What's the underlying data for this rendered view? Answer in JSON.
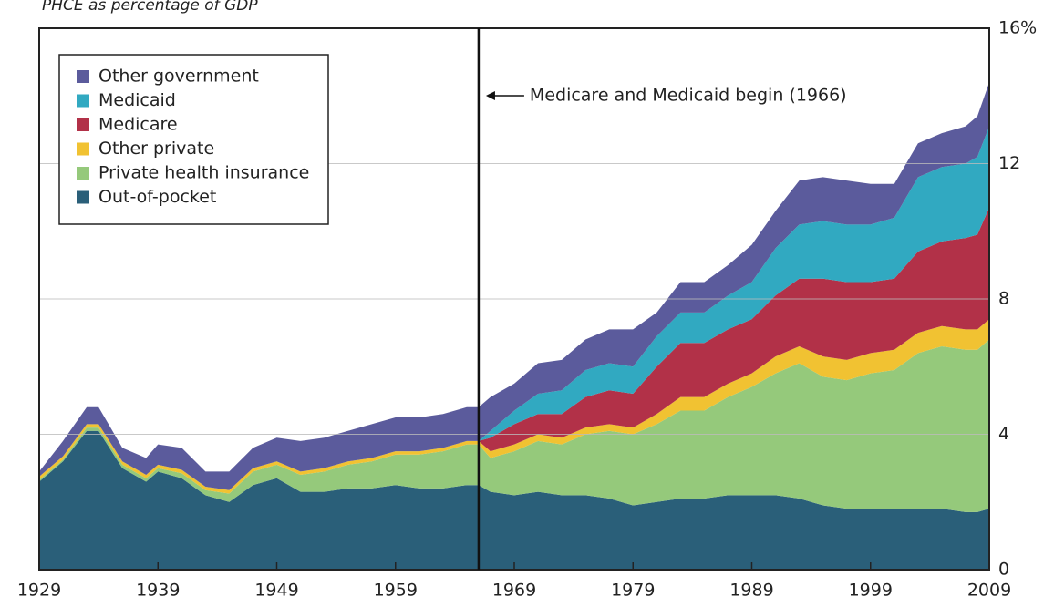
{
  "chart_data": {
    "type": "stacked_area",
    "title": "PHCE as percentage of GDP",
    "annotation": "Medicare and Medicaid begin (1966)",
    "annotation_x": 1966,
    "x": [
      1929,
      1931,
      1933,
      1934,
      1936,
      1938,
      1939,
      1941,
      1943,
      1945,
      1947,
      1949,
      1951,
      1953,
      1955,
      1957,
      1959,
      1961,
      1963,
      1965,
      1966,
      1967,
      1969,
      1971,
      1973,
      1975,
      1977,
      1979,
      1981,
      1983,
      1985,
      1987,
      1989,
      1991,
      1993,
      1995,
      1997,
      1999,
      2001,
      2003,
      2005,
      2007,
      2008,
      2009
    ],
    "series": [
      {
        "name": "Other government",
        "color": "#5b5b9c",
        "values": [
          0.15,
          0.45,
          0.5,
          0.5,
          0.4,
          0.5,
          0.6,
          0.65,
          0.45,
          0.55,
          0.6,
          0.7,
          0.9,
          0.9,
          0.9,
          1.0,
          1.0,
          1.0,
          1.0,
          1.0,
          1.0,
          1.0,
          0.8,
          0.9,
          0.9,
          0.9,
          1.0,
          1.1,
          0.7,
          0.9,
          0.9,
          0.9,
          1.1,
          1.1,
          1.3,
          1.3,
          1.3,
          1.2,
          1.0,
          1.0,
          1.0,
          1.1,
          1.2,
          1.3
        ]
      },
      {
        "name": "Medicaid",
        "color": "#31a9c1",
        "values": [
          0,
          0,
          0,
          0,
          0,
          0,
          0,
          0,
          0,
          0,
          0,
          0,
          0,
          0,
          0,
          0,
          0,
          0,
          0,
          0,
          0,
          0.2,
          0.4,
          0.6,
          0.7,
          0.8,
          0.8,
          0.8,
          0.9,
          0.9,
          0.9,
          1.0,
          1.1,
          1.4,
          1.6,
          1.7,
          1.7,
          1.7,
          1.8,
          2.2,
          2.2,
          2.2,
          2.3,
          2.4
        ]
      },
      {
        "name": "Medicare",
        "color": "#b23148",
        "values": [
          0,
          0,
          0,
          0,
          0,
          0,
          0,
          0,
          0,
          0,
          0,
          0,
          0,
          0,
          0,
          0,
          0,
          0,
          0,
          0,
          0,
          0.4,
          0.6,
          0.6,
          0.7,
          0.9,
          1.0,
          1.0,
          1.4,
          1.6,
          1.6,
          1.6,
          1.6,
          1.8,
          2.0,
          2.3,
          2.3,
          2.1,
          2.1,
          2.4,
          2.5,
          2.7,
          2.8,
          3.3
        ]
      },
      {
        "name": "Other private",
        "color": "#f1c232",
        "values": [
          0.1,
          0.1,
          0.1,
          0.1,
          0.1,
          0.1,
          0.1,
          0.1,
          0.1,
          0.1,
          0.1,
          0.1,
          0.1,
          0.1,
          0.1,
          0.1,
          0.1,
          0.1,
          0.1,
          0.1,
          0.1,
          0.2,
          0.2,
          0.2,
          0.2,
          0.2,
          0.2,
          0.2,
          0.3,
          0.4,
          0.4,
          0.4,
          0.4,
          0.5,
          0.5,
          0.6,
          0.6,
          0.6,
          0.6,
          0.6,
          0.6,
          0.6,
          0.6,
          0.6
        ]
      },
      {
        "name": "Private health insurance",
        "color": "#95c97b",
        "values": [
          0.05,
          0.05,
          0.1,
          0.1,
          0.1,
          0.1,
          0.1,
          0.15,
          0.15,
          0.25,
          0.4,
          0.4,
          0.5,
          0.6,
          0.7,
          0.8,
          0.9,
          1.0,
          1.1,
          1.2,
          1.2,
          1.0,
          1.3,
          1.5,
          1.5,
          1.8,
          2.0,
          2.1,
          2.3,
          2.6,
          2.6,
          2.9,
          3.2,
          3.6,
          4.0,
          3.8,
          3.8,
          4.0,
          4.1,
          4.6,
          4.8,
          4.8,
          4.8,
          5.0
        ]
      },
      {
        "name": "Out-of-pocket",
        "color": "#2a5f79",
        "values": [
          2.6,
          3.2,
          4.1,
          4.1,
          3.0,
          2.6,
          2.9,
          2.7,
          2.2,
          2.0,
          2.5,
          2.7,
          2.3,
          2.3,
          2.4,
          2.4,
          2.5,
          2.4,
          2.4,
          2.5,
          2.5,
          2.3,
          2.2,
          2.3,
          2.2,
          2.2,
          2.1,
          1.9,
          2.0,
          2.1,
          2.1,
          2.2,
          2.2,
          2.2,
          2.1,
          1.9,
          1.8,
          1.8,
          1.8,
          1.8,
          1.8,
          1.7,
          1.7,
          1.8
        ]
      }
    ],
    "xlim": [
      1929,
      2009
    ],
    "xticks": [
      1929,
      1939,
      1949,
      1959,
      1969,
      1979,
      1989,
      1999,
      2009
    ],
    "ylim": [
      0,
      16
    ],
    "yticks": [
      0,
      4,
      8,
      12,
      {
        "value": 16,
        "label": "16%"
      }
    ],
    "grid": true
  }
}
